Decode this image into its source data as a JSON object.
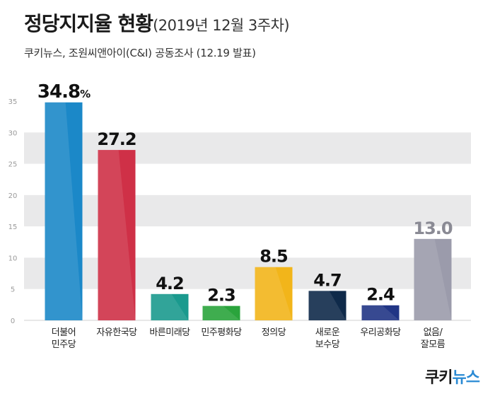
{
  "header": {
    "title": "정당지지율 현황",
    "period": "(2019년 12월 3주차)",
    "subtitle": "쿠키뉴스, 조원씨앤아이(C&I) 공동조사 (12.19 발표)"
  },
  "brand": {
    "logo_text": "쿠키뉴스"
  },
  "colors": {
    "background": "#ffffff",
    "grid_band": "#e9e9ea"
  },
  "chart_data": {
    "type": "bar",
    "categories": [
      "더불어\n민주당",
      "자유한국당",
      "바른미래당",
      "민주평화당",
      "정의당",
      "새로운\n보수당",
      "우리공화당",
      "없음/\n잘모름"
    ],
    "values": [
      34.8,
      27.2,
      4.2,
      2.3,
      8.5,
      4.7,
      2.4,
      13.0
    ],
    "value_labels": [
      "34.8",
      "27.2",
      "4.2",
      "2.3",
      "8.5",
      "4.7",
      "2.4",
      "13.0"
    ],
    "value_suffix_first": "%",
    "colors": [
      "#1b88c8",
      "#cf3047",
      "#1a9a8e",
      "#2aa43c",
      "#f2b51a",
      "#0f2a4a",
      "#213585",
      "#9b9bab"
    ],
    "label_colors": [
      "#111111",
      "#111111",
      "#111111",
      "#111111",
      "#111111",
      "#111111",
      "#111111",
      "#8a8a94"
    ],
    "y_ticks": [
      0,
      5,
      10,
      15,
      20,
      25,
      30,
      35
    ],
    "ylim": [
      0,
      35
    ],
    "grid": true,
    "xlabel": "",
    "ylabel": "",
    "title": "정당지지율 현황"
  }
}
